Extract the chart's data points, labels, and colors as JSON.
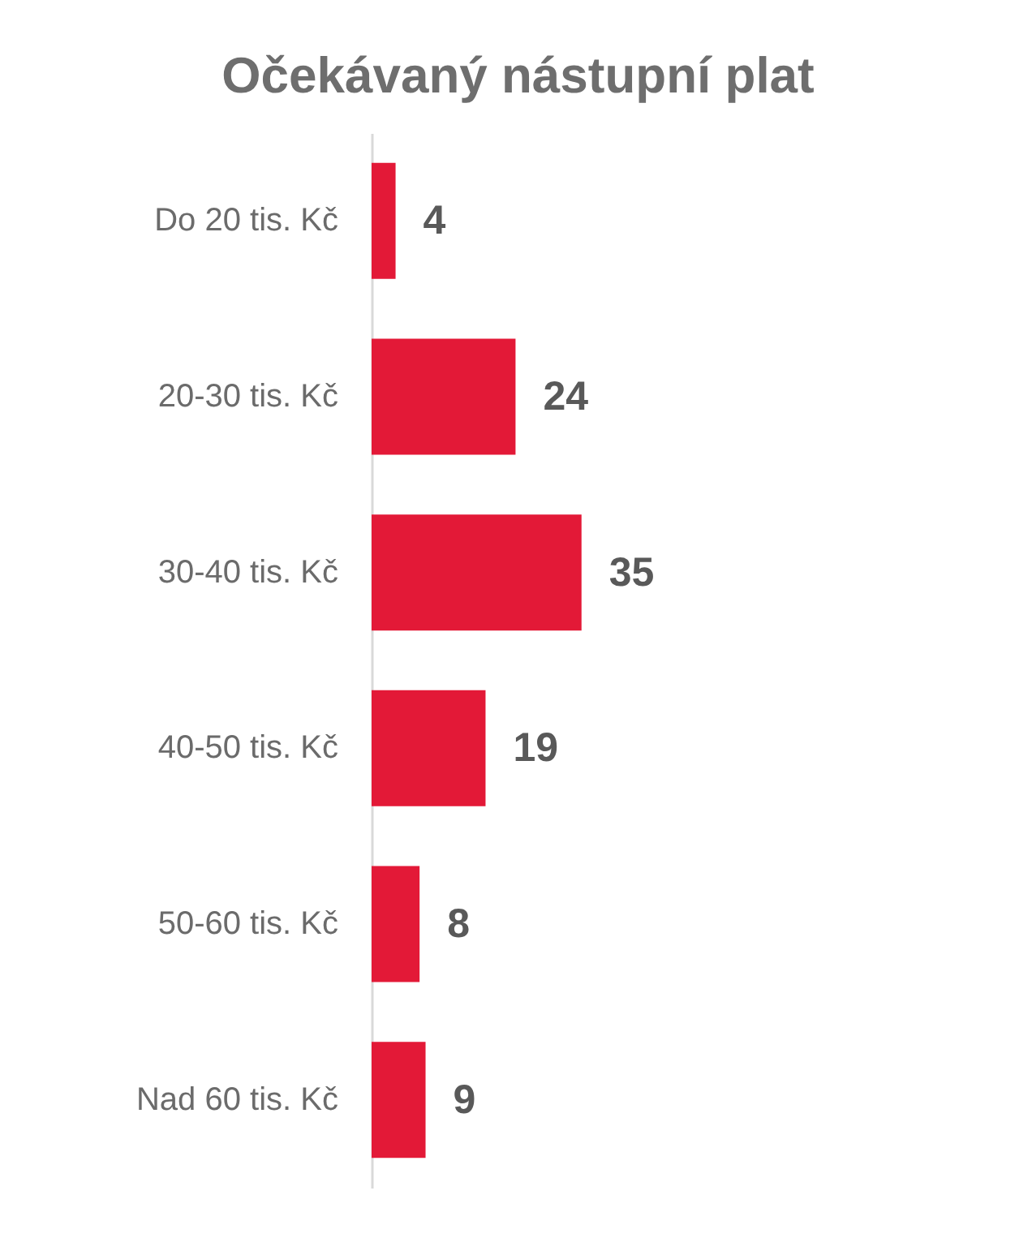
{
  "chart_data": {
    "type": "bar",
    "orientation": "horizontal",
    "title": "Očekávaný nástupní plat",
    "categories": [
      "Do 20 tis. Kč",
      "20-30 tis. Kč",
      "30-40 tis. Kč",
      "40-50 tis. Kč",
      "50-60 tis. Kč",
      "Nad 60 tis. Kč"
    ],
    "values": [
      4,
      24,
      35,
      19,
      8,
      9
    ],
    "color": "#e31937",
    "data_labels": true,
    "tick_labels": "y"
  }
}
